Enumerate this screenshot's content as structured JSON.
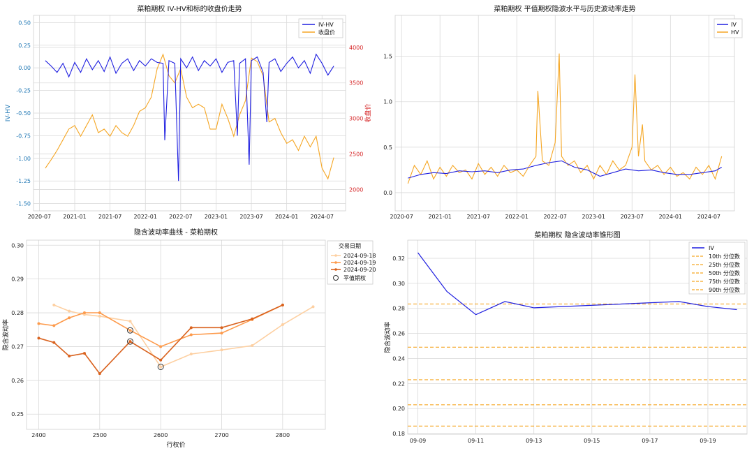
{
  "chart_data": [
    {
      "type": "line",
      "title": "菜粕期权 IV-HV和标的收盘价走势",
      "ylabel": "IV-HV",
      "ylabel_right": "收盘价",
      "xlabel": "",
      "x_ticks": [
        "2020-07",
        "2021-01",
        "2021-07",
        "2022-01",
        "2022-07",
        "2023-01",
        "2023-07",
        "2024-01",
        "2024-07"
      ],
      "y_ticks": [
        0.5,
        0.25,
        0.0,
        -0.25,
        -0.5,
        -0.75,
        -1.0,
        -1.25,
        -1.5
      ],
      "y_ticks_label": [
        "0.50",
        "0.25",
        "0.00",
        "-0.25",
        "-0.50",
        "-0.75",
        "-1.00",
        "-1.25",
        "-1.50"
      ],
      "y_right_ticks": [
        "4000",
        "3500",
        "3000",
        "2500",
        "2000"
      ],
      "ylim": [
        -1.58,
        0.58
      ],
      "ylim_right": [
        1700,
        4450
      ],
      "xlim": [
        "2020-06",
        "2024-11"
      ],
      "grid": true,
      "legend": "top-right",
      "colors": {
        "iv_hv": "#1f1fe0",
        "close": "#f5a623",
        "left_axis": "#1f77b4",
        "right_axis": "#d62728"
      },
      "series": [
        {
          "name": "IV-HV",
          "axis": "left",
          "x": [
            "2020-08",
            "2020-09",
            "2020-10",
            "2020-11",
            "2020-12",
            "2021-01",
            "2021-02",
            "2021-03",
            "2021-04",
            "2021-05",
            "2021-06",
            "2021-07",
            "2021-08",
            "2021-09",
            "2021-10",
            "2021-11",
            "2021-12",
            "2022-01",
            "2022-02",
            "2022-03",
            "2022-04",
            "2022-04-10",
            "2022-05",
            "2022-06",
            "2022-06-20",
            "2022-07",
            "2022-08",
            "2022-09",
            "2022-10",
            "2022-11",
            "2022-12",
            "2023-01",
            "2023-02",
            "2023-03",
            "2023-04",
            "2023-04-20",
            "2023-05",
            "2023-06",
            "2023-06-20",
            "2023-07",
            "2023-08",
            "2023-09",
            "2023-09-20",
            "2023-10",
            "2023-11",
            "2023-12",
            "2024-01",
            "2024-02",
            "2024-03",
            "2024-04",
            "2024-05",
            "2024-06",
            "2024-07",
            "2024-08",
            "2024-09"
          ],
          "y": [
            0.08,
            0.02,
            -0.05,
            0.05,
            -0.1,
            0.06,
            -0.05,
            0.1,
            -0.02,
            0.08,
            -0.04,
            0.12,
            -0.06,
            0.05,
            0.1,
            -0.03,
            0.08,
            0.02,
            0.1,
            0.06,
            0.05,
            -0.8,
            0.08,
            0.05,
            -1.25,
            0.1,
            0.0,
            0.12,
            -0.03,
            0.08,
            0.02,
            0.1,
            -0.05,
            0.06,
            0.08,
            -0.75,
            0.05,
            0.1,
            -1.07,
            0.08,
            0.12,
            -0.05,
            -0.6,
            0.06,
            0.1,
            -0.04,
            0.05,
            0.12,
            0.0,
            0.08,
            -0.06,
            0.15,
            0.05,
            -0.08,
            0.02
          ]
        },
        {
          "name": "收盘价",
          "axis": "right",
          "x": [
            "2020-08",
            "2020-09",
            "2020-10",
            "2020-11",
            "2020-12",
            "2021-01",
            "2021-02",
            "2021-03",
            "2021-04",
            "2021-05",
            "2021-06",
            "2021-07",
            "2021-08",
            "2021-09",
            "2021-10",
            "2021-11",
            "2021-12",
            "2022-01",
            "2022-02",
            "2022-03",
            "2022-04",
            "2022-05",
            "2022-06",
            "2022-07",
            "2022-08",
            "2022-09",
            "2022-10",
            "2022-11",
            "2022-12",
            "2023-01",
            "2023-02",
            "2023-03",
            "2023-04",
            "2023-05",
            "2023-06",
            "2023-07",
            "2023-08",
            "2023-09",
            "2023-10",
            "2023-11",
            "2023-12",
            "2024-01",
            "2024-02",
            "2024-03",
            "2024-04",
            "2024-05",
            "2024-06",
            "2024-07",
            "2024-08",
            "2024-09"
          ],
          "y": [
            2300,
            2420,
            2550,
            2700,
            2850,
            2900,
            2750,
            2900,
            3050,
            2800,
            2850,
            2750,
            2900,
            2800,
            2750,
            2900,
            3100,
            3150,
            3300,
            3700,
            3900,
            3600,
            3500,
            3700,
            3300,
            3150,
            3200,
            3150,
            2850,
            2850,
            3200,
            3000,
            2750,
            3050,
            3250,
            3850,
            3800,
            3600,
            2950,
            3000,
            2800,
            2650,
            2700,
            2550,
            2750,
            2600,
            2750,
            2300,
            2150,
            2450
          ]
        }
      ]
    },
    {
      "type": "line",
      "title": "菜粕期权 平值期权隐波水平与历史波动率走势",
      "xlabel": "",
      "ylabel": "",
      "x_ticks": [
        "2020-07",
        "2021-01",
        "2021-07",
        "2022-01",
        "2022-07",
        "2023-01",
        "2023-07",
        "2024-01",
        "2024-07"
      ],
      "y_ticks": [
        0.0,
        0.5,
        1.0,
        1.5
      ],
      "y_ticks_label": [
        "0.0",
        "0.5",
        "1.0",
        "1.5"
      ],
      "ylim": [
        -0.2,
        1.95
      ],
      "xlim": [
        "2020-06",
        "2024-11"
      ],
      "grid": true,
      "legend": "top-right",
      "colors": {
        "IV": "#1f1fe0",
        "HV": "#f5a623"
      },
      "series": [
        {
          "name": "IV",
          "x": [
            "2020-08",
            "2020-10",
            "2020-12",
            "2021-02",
            "2021-04",
            "2021-06",
            "2021-08",
            "2021-10",
            "2021-12",
            "2022-02",
            "2022-04",
            "2022-06",
            "2022-08",
            "2022-10",
            "2022-12",
            "2023-02",
            "2023-04",
            "2023-06",
            "2023-08",
            "2023-10",
            "2023-12",
            "2024-02",
            "2024-04",
            "2024-06",
            "2024-08",
            "2024-09"
          ],
          "y": [
            0.16,
            0.2,
            0.22,
            0.21,
            0.24,
            0.23,
            0.24,
            0.22,
            0.25,
            0.26,
            0.3,
            0.33,
            0.35,
            0.28,
            0.25,
            0.18,
            0.22,
            0.26,
            0.24,
            0.25,
            0.22,
            0.2,
            0.2,
            0.22,
            0.24,
            0.28
          ]
        },
        {
          "name": "HV",
          "x": [
            "2020-08",
            "2020-09",
            "2020-10",
            "2020-11",
            "2020-12",
            "2021-01",
            "2021-02",
            "2021-03",
            "2021-04",
            "2021-05",
            "2021-06",
            "2021-07",
            "2021-08",
            "2021-09",
            "2021-10",
            "2021-11",
            "2021-12",
            "2022-01",
            "2022-02",
            "2022-03",
            "2022-04",
            "2022-04-10",
            "2022-05",
            "2022-06",
            "2022-07",
            "2022-07-20",
            "2022-08",
            "2022-09",
            "2022-10",
            "2022-11",
            "2022-12",
            "2023-01",
            "2023-02",
            "2023-03",
            "2023-04",
            "2023-05",
            "2023-06",
            "2023-07",
            "2023-07-15",
            "2023-08",
            "2023-08-20",
            "2023-09",
            "2023-10",
            "2023-11",
            "2023-12",
            "2024-01",
            "2024-02",
            "2024-03",
            "2024-04",
            "2024-05",
            "2024-06",
            "2024-07",
            "2024-08",
            "2024-09"
          ],
          "y": [
            0.1,
            0.3,
            0.2,
            0.35,
            0.15,
            0.28,
            0.18,
            0.3,
            0.22,
            0.25,
            0.15,
            0.32,
            0.2,
            0.28,
            0.18,
            0.3,
            0.22,
            0.25,
            0.18,
            0.3,
            0.4,
            1.12,
            0.35,
            0.3,
            0.55,
            1.53,
            0.4,
            0.3,
            0.35,
            0.22,
            0.3,
            0.15,
            0.3,
            0.2,
            0.35,
            0.25,
            0.3,
            0.5,
            1.3,
            0.4,
            0.75,
            0.35,
            0.25,
            0.3,
            0.2,
            0.28,
            0.18,
            0.22,
            0.15,
            0.28,
            0.2,
            0.3,
            0.15,
            0.4
          ]
        }
      ]
    },
    {
      "type": "line",
      "title": "隐含波动率曲线 - 菜粕期权",
      "xlabel": "行权价",
      "ylabel": "隐含波动率",
      "x_ticks": [
        2400,
        2500,
        2600,
        2700,
        2800
      ],
      "x_ticks_label": [
        "2400",
        "2500",
        "2600",
        "2700",
        "2800"
      ],
      "y_ticks": [
        0.25,
        0.26,
        0.27,
        0.28,
        0.29,
        0.3
      ],
      "y_ticks_label": [
        "0.25",
        "0.26",
        "0.27",
        "0.28",
        "0.29",
        "0.30"
      ],
      "xlim": [
        2380,
        2870
      ],
      "ylim": [
        0.2455,
        0.3015
      ],
      "grid": true,
      "legend_title": "交易日期",
      "legend": "outside-right",
      "atm_label": "平值期权",
      "series": [
        {
          "name": "2024-09-18",
          "color": "#fdd0a2",
          "x": [
            2425,
            2450,
            2475,
            2500,
            2550,
            2600,
            2650,
            2700,
            2750,
            2800,
            2850
          ],
          "y": [
            0.2823,
            0.2805,
            0.2795,
            0.279,
            0.2775,
            0.264,
            0.2678,
            0.269,
            0.2703,
            0.2765,
            0.2818
          ]
        },
        {
          "name": "2024-09-19",
          "color": "#fd9a4b",
          "x": [
            2400,
            2425,
            2450,
            2475,
            2500,
            2550,
            2600,
            2650,
            2700,
            2750,
            2800
          ],
          "y": [
            0.2768,
            0.2762,
            0.2785,
            0.28,
            0.28,
            0.2748,
            0.27,
            0.2735,
            0.274,
            0.278,
            0.2823
          ]
        },
        {
          "name": "2024-09-20",
          "color": "#d9621e",
          "x": [
            2400,
            2425,
            2450,
            2475,
            2500,
            2550,
            2600,
            2650,
            2700,
            2750,
            2800
          ],
          "y": [
            0.2725,
            0.2712,
            0.2672,
            0.268,
            0.262,
            0.2715,
            0.266,
            0.2756,
            0.2756,
            0.2782,
            0.2823
          ]
        }
      ],
      "atm_points": [
        {
          "x": 2550,
          "y": 0.2748
        },
        {
          "x": 2550,
          "y": 0.2715
        },
        {
          "x": 2600,
          "y": 0.264
        }
      ]
    },
    {
      "type": "line",
      "title": "菜粕期权 隐含波动率锥形图",
      "xlabel": "",
      "ylabel": "隐含波动率",
      "x_ticks": [
        "09-09",
        "09-11",
        "09-13",
        "09-15",
        "09-17",
        "09-19"
      ],
      "y_ticks": [
        0.18,
        0.2,
        0.22,
        0.24,
        0.26,
        0.28,
        0.3,
        0.32
      ],
      "y_ticks_label": [
        "0.18",
        "0.20",
        "0.22",
        "0.24",
        "0.26",
        "0.28",
        "0.30",
        "0.32"
      ],
      "xlim": [
        -0.35,
        11.35
      ],
      "ylim": [
        0.1795,
        0.3345
      ],
      "grid": true,
      "legend": "top-right",
      "series": [
        {
          "name": "IV",
          "color": "#1f1fe0",
          "x": [
            0,
            1,
            2,
            3,
            4,
            9,
            10,
            11
          ],
          "y": [
            0.3245,
            0.2935,
            0.275,
            0.2855,
            0.2805,
            0.2855,
            0.2815,
            0.279
          ]
        }
      ],
      "percentiles": [
        {
          "name": "10th 分位数",
          "value": 0.186
        },
        {
          "name": "25th 分位数",
          "value": 0.203
        },
        {
          "name": "50th 分位数",
          "value": 0.223
        },
        {
          "name": "75th 分位数",
          "value": 0.249
        },
        {
          "name": "90th 分位数",
          "value": 0.2835
        }
      ],
      "percentile_color": "#f5a623"
    }
  ]
}
